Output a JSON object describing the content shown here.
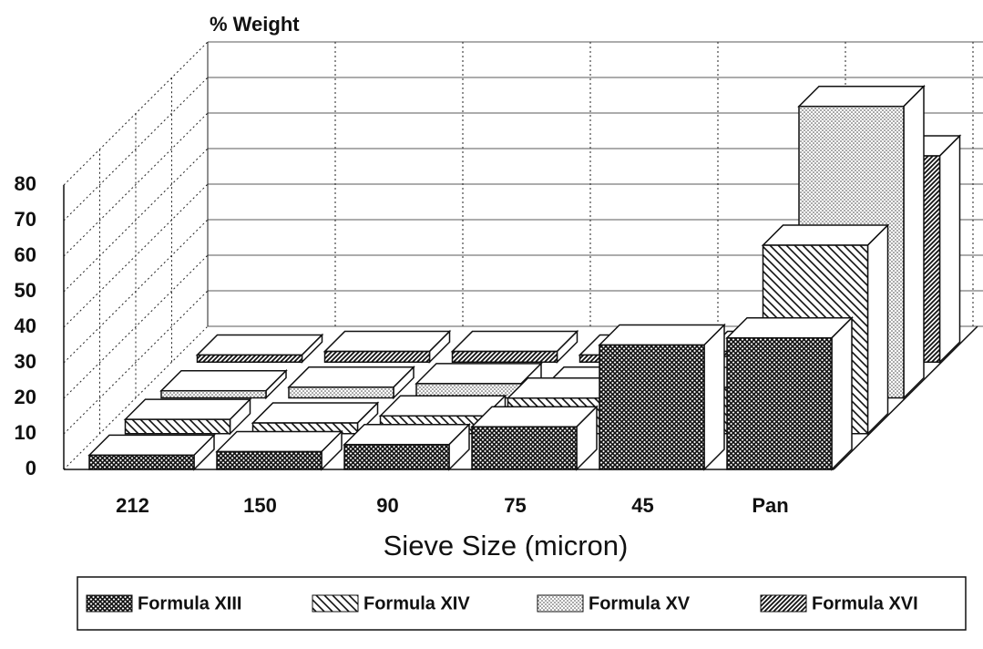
{
  "chart_data": {
    "type": "bar3d",
    "y_axis_label": "% Weight",
    "x_axis_label": "Sieve Size (micron)",
    "categories": [
      "212",
      "150",
      "90",
      "75",
      "45",
      "Pan"
    ],
    "series": [
      {
        "name": "Formula XIII",
        "pattern": "crosshatch",
        "values": [
          4,
          5,
          7,
          12,
          35,
          37
        ]
      },
      {
        "name": "Formula XIV",
        "pattern": "backslash",
        "values": [
          4,
          3,
          5,
          10,
          13,
          53
        ]
      },
      {
        "name": "Formula XV",
        "pattern": "dots",
        "values": [
          2,
          3,
          4,
          3,
          6,
          82
        ]
      },
      {
        "name": "Formula XVI",
        "pattern": "slash",
        "values": [
          2,
          3,
          3,
          2,
          3,
          58
        ]
      }
    ],
    "ylim": [
      0,
      80
    ],
    "yticks": [
      0,
      10,
      20,
      30,
      40,
      50,
      60,
      70,
      80
    ],
    "grid": true,
    "legend": "bottom"
  }
}
